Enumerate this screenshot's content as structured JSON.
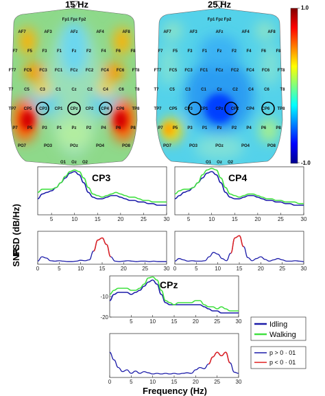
{
  "topomaps": [
    {
      "title": "15 Hz"
    },
    {
      "title": "25 Hz"
    }
  ],
  "colorbar": {
    "max_label": "1.0",
    "min_label": "-1.0",
    "colormap": "jet",
    "range": [
      -1.0,
      1.0
    ]
  },
  "electrodes": [
    "Fp1",
    "Fpz",
    "Fp2",
    "AF7",
    "AF3",
    "AFz",
    "AF4",
    "AF8",
    "F7",
    "F5",
    "F3",
    "F1",
    "Fz",
    "F2",
    "F4",
    "F6",
    "F8",
    "FT7",
    "FC5",
    "FC3",
    "FC1",
    "FCz",
    "FC2",
    "FC4",
    "FC6",
    "FT8",
    "T7",
    "C5",
    "C3",
    "C1",
    "Cz",
    "C2",
    "C4",
    "C6",
    "T8",
    "TP7",
    "CP5",
    "CP3",
    "CP1",
    "CPz",
    "CP2",
    "CP4",
    "CP6",
    "TP8",
    "P7",
    "P5",
    "P3",
    "P1",
    "Pz",
    "P2",
    "P4",
    "P6",
    "P8",
    "PO7",
    "PO3",
    "POz",
    "PO4",
    "PO8",
    "O1",
    "Oz",
    "O2"
  ],
  "labels": {
    "psd_ylabel": "PSD (dB/Hz)",
    "snr_ylabel": "SNR",
    "cp3": "CP3",
    "cp4": "CP4",
    "cpz": "CPz",
    "xlabel": "Frequency (Hz)"
  },
  "legends": {
    "conditions": [
      "Idling",
      "Walking"
    ],
    "significance": [
      "p > 0 · 01",
      "p < 0 · 01"
    ]
  },
  "colors": {
    "idling": "#1a1aa8",
    "walking": "#3fe03f",
    "significant": "#e02020",
    "not_significant": "#1a1aa8"
  },
  "chart_data": [
    {
      "type": "line",
      "panel": "CP3-PSD",
      "xlim": [
        2,
        30
      ],
      "xticks": [
        5,
        10,
        15,
        20,
        25,
        30
      ],
      "ylim": [
        -20,
        10
      ],
      "yticks": [],
      "series": [
        {
          "name": "Idling",
          "x": [
            2,
            3,
            4,
            5,
            6,
            7,
            8,
            9,
            10,
            11,
            12,
            13,
            14,
            15,
            16,
            17,
            18,
            19,
            20,
            21,
            22,
            23,
            24,
            25,
            26,
            27,
            28,
            29,
            30
          ],
          "values": [
            -10,
            -7,
            -6,
            -5,
            -3,
            0,
            3,
            6,
            7,
            5,
            0,
            -6,
            -9,
            -10,
            -10,
            -9,
            -8,
            -8,
            -9,
            -10,
            -11,
            -11,
            -12,
            -12,
            -13,
            -13,
            -14,
            -14,
            -14
          ]
        },
        {
          "name": "Walking",
          "x": [
            2,
            3,
            4,
            5,
            6,
            7,
            8,
            9,
            10,
            11,
            12,
            13,
            14,
            15,
            16,
            17,
            18,
            19,
            20,
            21,
            22,
            23,
            24,
            25,
            26,
            27,
            28,
            29,
            30
          ],
          "values": [
            -6,
            -4,
            -4,
            -4,
            -3,
            0,
            4,
            7,
            8,
            7,
            3,
            -3,
            -7,
            -8,
            -9,
            -8,
            -7,
            -6,
            -7,
            -8,
            -9,
            -9,
            -10,
            -11,
            -11,
            -12,
            -12,
            -12,
            -12
          ]
        }
      ]
    },
    {
      "type": "line",
      "panel": "CP3-SNR",
      "xlim": [
        0,
        30
      ],
      "xticks": [
        0,
        5,
        10,
        15,
        20,
        25,
        30
      ],
      "ylim": [
        -0.05,
        0.7
      ],
      "yticks": [],
      "series": [
        {
          "name": "SNR",
          "x": [
            0,
            1,
            2,
            3,
            4,
            5,
            6,
            7,
            8,
            9,
            10,
            11,
            12,
            13,
            14,
            15,
            16,
            17,
            18,
            19,
            20,
            21,
            22,
            23,
            24,
            25,
            26,
            27,
            28,
            29,
            30
          ],
          "values": [
            0.02,
            0.12,
            0.09,
            0.03,
            0.02,
            0.03,
            0.02,
            0.01,
            0.01,
            0.02,
            0.04,
            0.03,
            0.05,
            0.25,
            0.5,
            0.55,
            0.4,
            0.12,
            0.02,
            0.01,
            0.02,
            0.03,
            0.02,
            0.01,
            0.02,
            0.02,
            0.01,
            0.02,
            0.01,
            0.01,
            0.01
          ],
          "significant_x": [
            13,
            17
          ]
        }
      ]
    },
    {
      "type": "line",
      "panel": "CP4-PSD",
      "xlim": [
        2,
        30
      ],
      "xticks": [
        5,
        10,
        15,
        20,
        25,
        30
      ],
      "ylim": [
        -20,
        10
      ],
      "yticks": [],
      "series": [
        {
          "name": "Idling",
          "x": [
            2,
            3,
            4,
            5,
            6,
            7,
            8,
            9,
            10,
            11,
            12,
            13,
            14,
            15,
            16,
            17,
            18,
            19,
            20,
            21,
            22,
            23,
            24,
            25,
            26,
            27,
            28,
            29,
            30
          ],
          "values": [
            -10,
            -8,
            -6,
            -5,
            -3,
            0,
            3,
            6,
            7,
            5,
            0,
            -6,
            -9,
            -10,
            -10,
            -9,
            -8,
            -8,
            -9,
            -10,
            -11,
            -11,
            -12,
            -12,
            -13,
            -13,
            -14,
            -14,
            -14
          ]
        },
        {
          "name": "Walking",
          "x": [
            2,
            3,
            4,
            5,
            6,
            7,
            8,
            9,
            10,
            11,
            12,
            13,
            14,
            15,
            16,
            17,
            18,
            19,
            20,
            21,
            22,
            23,
            24,
            25,
            26,
            27,
            28,
            29,
            30
          ],
          "values": [
            -7,
            -5,
            -4,
            -4,
            -3,
            0,
            5,
            8,
            9,
            8,
            3,
            -3,
            -7,
            -8,
            -9,
            -8,
            -7,
            -7,
            -8,
            -9,
            -10,
            -10,
            -11,
            -11,
            -12,
            -12,
            -12,
            -13,
            -13
          ]
        }
      ]
    },
    {
      "type": "line",
      "panel": "CP4-SNR",
      "xlim": [
        0,
        30
      ],
      "xticks": [
        0,
        5,
        10,
        15,
        20,
        25,
        30
      ],
      "ylim": [
        -0.05,
        0.7
      ],
      "yticks": [],
      "series": [
        {
          "name": "SNR",
          "x": [
            0,
            1,
            2,
            3,
            4,
            5,
            6,
            7,
            8,
            9,
            10,
            11,
            12,
            13,
            14,
            15,
            16,
            17,
            18,
            19,
            20,
            21,
            22,
            23,
            24,
            25,
            26,
            27,
            28,
            29,
            30
          ],
          "values": [
            0.02,
            0.08,
            0.05,
            0.02,
            0.03,
            0.02,
            0.02,
            0.03,
            0.12,
            0.22,
            0.18,
            0.08,
            0.03,
            0.2,
            0.55,
            0.6,
            0.35,
            0.1,
            0.03,
            0.08,
            0.12,
            0.06,
            0.02,
            0.05,
            0.08,
            0.05,
            0.02,
            0.02,
            0.03,
            0.02,
            0.01
          ],
          "significant_x": [
            13,
            16
          ]
        }
      ]
    },
    {
      "type": "line",
      "panel": "CPz-PSD",
      "xlim": [
        0,
        30
      ],
      "xticks": [
        5,
        10,
        15,
        20,
        25,
        30
      ],
      "ylim": [
        -20,
        0
      ],
      "yticks": [
        -10,
        -20
      ],
      "series": [
        {
          "name": "Idling",
          "x": [
            0,
            1,
            2,
            3,
            4,
            5,
            6,
            7,
            8,
            9,
            10,
            11,
            12,
            13,
            14,
            15,
            16,
            17,
            18,
            19,
            20,
            21,
            22,
            23,
            24,
            25,
            26,
            27,
            28,
            29,
            30
          ],
          "values": [
            -12,
            -9,
            -8,
            -8,
            -8,
            -9,
            -8,
            -7,
            -5,
            -3,
            -2,
            -4,
            -9,
            -13,
            -14,
            -14,
            -14,
            -14,
            -14,
            -14,
            -14,
            -14,
            -15,
            -16,
            -17,
            -17,
            -18,
            -18,
            -18,
            -18,
            -18
          ]
        },
        {
          "name": "Walking",
          "x": [
            0,
            1,
            2,
            3,
            4,
            5,
            6,
            7,
            8,
            9,
            10,
            11,
            12,
            13,
            14,
            15,
            16,
            17,
            18,
            19,
            20,
            21,
            22,
            23,
            24,
            25,
            26,
            27,
            28,
            29,
            30
          ],
          "values": [
            -9,
            -7,
            -6,
            -6,
            -6,
            -7,
            -7,
            -6,
            -4,
            -1,
            -0.5,
            -2,
            -7,
            -12,
            -13,
            -14,
            -13,
            -13,
            -13,
            -13,
            -12,
            -12,
            -14,
            -15,
            -15,
            -16,
            -15,
            -16,
            -17,
            -17,
            -17
          ]
        }
      ]
    },
    {
      "type": "line",
      "panel": "CPz-SNR",
      "xlim": [
        0,
        30
      ],
      "xticks": [
        0,
        5,
        10,
        15,
        20,
        25,
        30
      ],
      "ylim": [
        -0.05,
        0.7
      ],
      "yticks": [],
      "series": [
        {
          "name": "SNR",
          "x": [
            0,
            1,
            2,
            3,
            4,
            5,
            6,
            7,
            8,
            9,
            10,
            11,
            12,
            13,
            14,
            15,
            16,
            17,
            18,
            19,
            20,
            21,
            22,
            23,
            24,
            25,
            26,
            27,
            28,
            29,
            30
          ],
          "values": [
            0.38,
            0.25,
            0.12,
            0.05,
            0.08,
            0.02,
            0.06,
            0.02,
            0.05,
            0.03,
            0.01,
            0.02,
            0.01,
            0.02,
            0.01,
            0.02,
            0.01,
            0.02,
            0.03,
            0.02,
            0.08,
            0.12,
            0.1,
            0.18,
            0.3,
            0.38,
            0.32,
            0.38,
            0.2,
            0.04,
            0.02
          ],
          "significant_x": [
            23,
            28
          ]
        }
      ]
    }
  ]
}
